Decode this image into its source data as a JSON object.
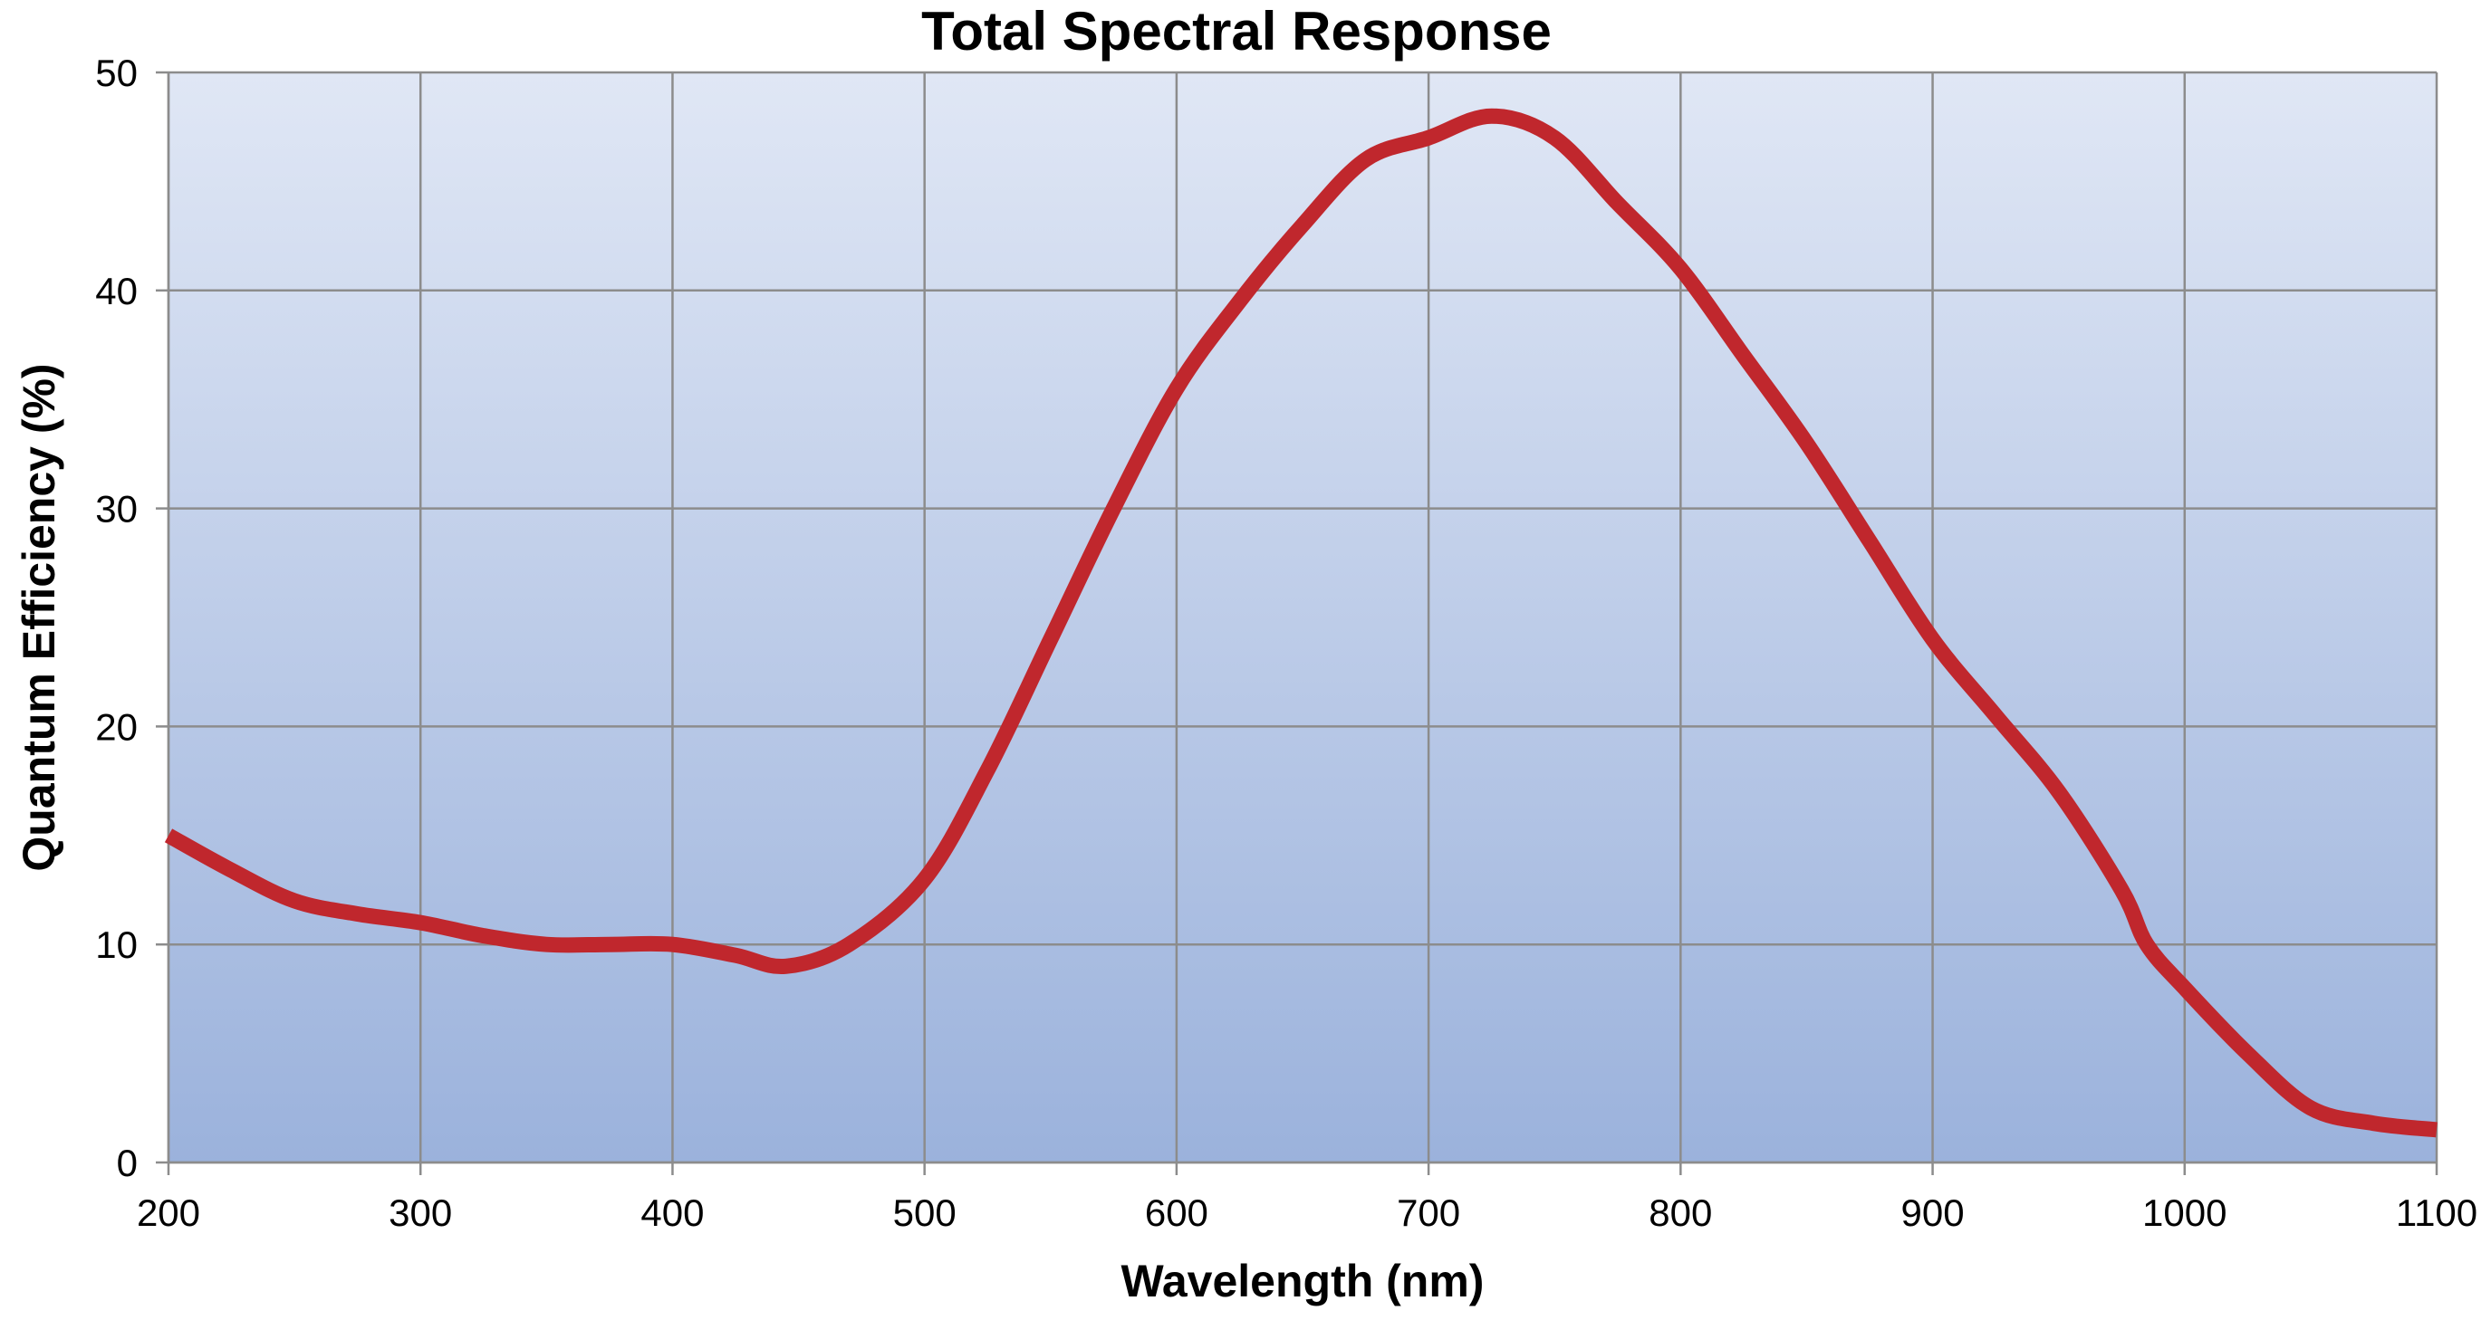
{
  "chart_data": {
    "type": "line",
    "title": "Total Spectral Response",
    "xlabel": "Wavelength (nm)",
    "ylabel": "Quantum Efficiency (%)",
    "xlim": [
      200,
      1100
    ],
    "ylim": [
      0,
      50
    ],
    "x_ticks": [
      200,
      300,
      400,
      500,
      600,
      700,
      800,
      900,
      1000,
      1100
    ],
    "y_ticks": [
      0,
      10,
      20,
      30,
      40,
      50
    ],
    "grid": true,
    "legend": "none",
    "background_gradient": [
      "#e0e7f5",
      "#9bb2dc"
    ],
    "series": [
      {
        "color": "#c0272d",
        "x": [
          200,
          225,
          250,
          275,
          300,
          325,
          350,
          375,
          400,
          425,
          445,
          470,
          500,
          525,
          550,
          575,
          600,
          625,
          650,
          675,
          700,
          725,
          750,
          775,
          800,
          825,
          850,
          875,
          900,
          925,
          950,
          975,
          985,
          1000,
          1025,
          1050,
          1075,
          1100
        ],
        "y": [
          15,
          13.4,
          12,
          11.4,
          11,
          10.4,
          10,
          10,
          10,
          9.5,
          9,
          10,
          13,
          18,
          24,
          30,
          35.5,
          39.5,
          43,
          46,
          47,
          48,
          47,
          44,
          41,
          37,
          33,
          28.5,
          24,
          20.5,
          17,
          12.5,
          10,
          8,
          5,
          2.5,
          1.8,
          1.5
        ]
      }
    ]
  }
}
